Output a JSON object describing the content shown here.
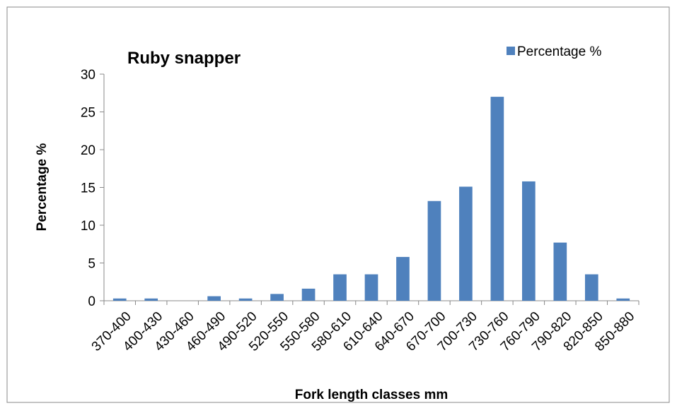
{
  "chart_data": {
    "type": "bar",
    "title": "Ruby snapper",
    "x_label": "Fork length classes mm",
    "y_label": "Percentage %",
    "categories": [
      "370-400",
      "400-430",
      "430-460",
      "460-490",
      "490-520",
      "520-550",
      "550-580",
      "580-610",
      "610-640",
      "640-670",
      "670-700",
      "700-730",
      "730-760",
      "760-790",
      "790-820",
      "820-850",
      "850-880"
    ],
    "series": [
      {
        "name": "Percentage %",
        "color": "#4f81bd",
        "values": [
          0.3,
          0.3,
          0,
          0.6,
          0.3,
          0.9,
          1.6,
          3.5,
          3.5,
          5.8,
          13.2,
          15.1,
          27.0,
          15.8,
          7.7,
          3.5,
          0.3
        ]
      }
    ],
    "ylim": [
      0,
      30
    ],
    "yticks": [
      0,
      5,
      10,
      15,
      20,
      25,
      30
    ],
    "grid": false,
    "legend": "top-right"
  }
}
